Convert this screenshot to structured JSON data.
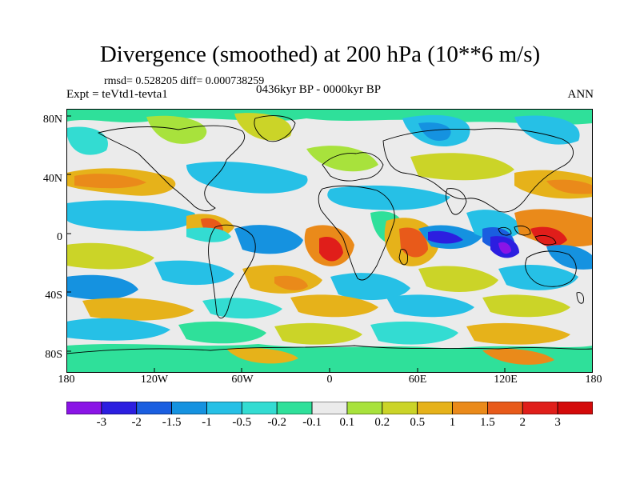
{
  "title": "Divergence (smoothed) at 200 hPa (10**6 m/s)",
  "stats": "rmsd= 0.528205 diff= 0.000738259",
  "experiment": "Expt = teVtd1-tevta1",
  "period": "0436kyr BP - 0000kyr BP",
  "season": "ANN",
  "lat_labels": [
    "80N",
    "40N",
    "0",
    "40S",
    "80S"
  ],
  "lon_labels": [
    "180",
    "120W",
    "60W",
    "0",
    "60E",
    "120E",
    "180"
  ],
  "colorbar": {
    "labels": [
      "-3",
      "-2",
      "-1.5",
      "-1",
      "-0.5",
      "-0.2",
      "-0.1",
      "0.1",
      "0.2",
      "0.5",
      "1",
      "1.5",
      "2",
      "3"
    ],
    "colors": [
      "#8a14e6",
      "#2c1ee0",
      "#1a5ee0",
      "#1592e0",
      "#26c0e6",
      "#33dcd2",
      "#2fe09a",
      "#ebebeb",
      "#a8e23c",
      "#cbd428",
      "#e6b21a",
      "#ea8a1a",
      "#e85a1a",
      "#e01e1a",
      "#d40a0a"
    ]
  }
}
